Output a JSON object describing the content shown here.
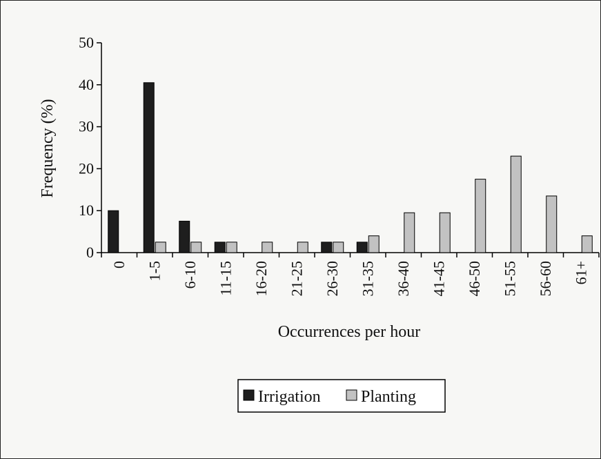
{
  "chart_data": {
    "type": "bar",
    "xlabel": "Occurrences per hour",
    "ylabel": "Frequency (%)",
    "ylim": [
      0,
      50
    ],
    "yticks": [
      0,
      10,
      20,
      30,
      40,
      50
    ],
    "categories": [
      "0",
      "1-5",
      "6-10",
      "11-15",
      "16-20",
      "21-25",
      "26-30",
      "31-35",
      "36-40",
      "41-45",
      "46-50",
      "51-55",
      "56-60",
      "61+"
    ],
    "series": [
      {
        "name": "Irrigation",
        "color": "#1e1e1e",
        "values": [
          10,
          40.5,
          7.5,
          2.5,
          0,
          0,
          2.5,
          2.5,
          0,
          0,
          0,
          0,
          0,
          0
        ]
      },
      {
        "name": "Planting",
        "color": "#c2c2c2",
        "values": [
          0,
          2.5,
          2.5,
          2.5,
          2.5,
          2.5,
          2.5,
          4,
          9.5,
          9.5,
          17.5,
          23,
          13.5,
          4
        ]
      }
    ],
    "legend_position": "bottom-center",
    "grid": false
  }
}
